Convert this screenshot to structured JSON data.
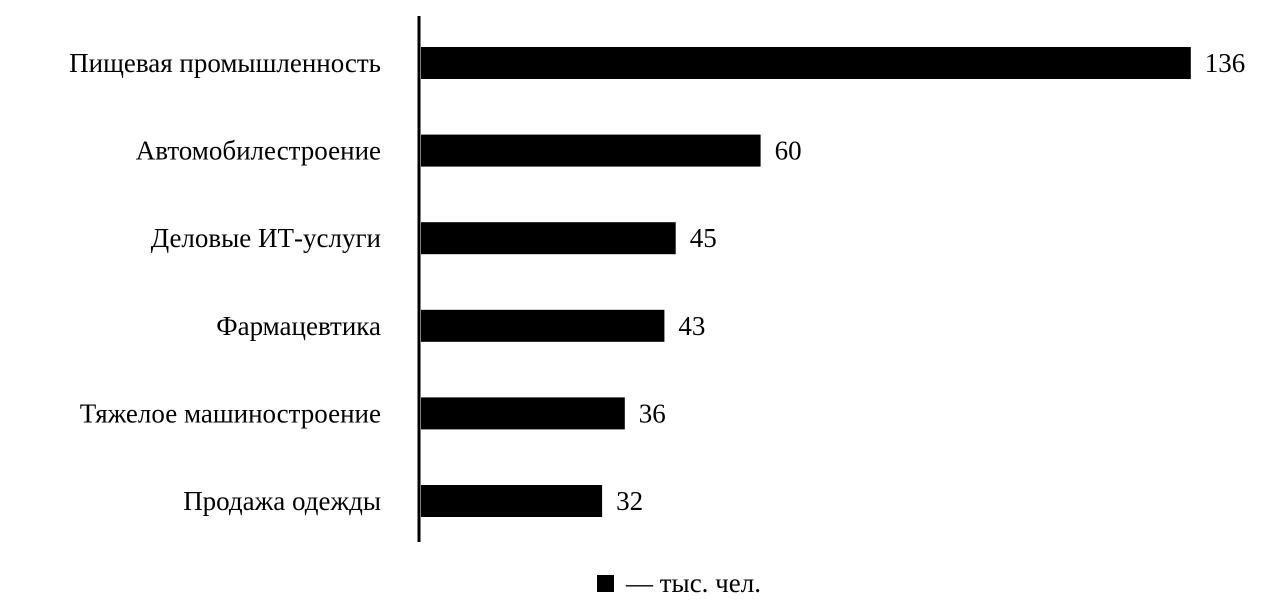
{
  "chart_data": {
    "type": "bar",
    "orientation": "horizontal",
    "categories": [
      "Пищевая промышленность",
      "Автомобилестроение",
      "Деловые ИТ-услуги",
      "Фармацевтика",
      "Тяжелое машиностроение",
      "Продажа одежды"
    ],
    "series": [
      {
        "name": "— тыс. чел.",
        "values": [
          136,
          60,
          45,
          43,
          36,
          32
        ],
        "color": "#000000"
      }
    ],
    "xlim": [
      0,
      140
    ],
    "grid": false,
    "data_labels": true,
    "legend_position": "bottom"
  }
}
